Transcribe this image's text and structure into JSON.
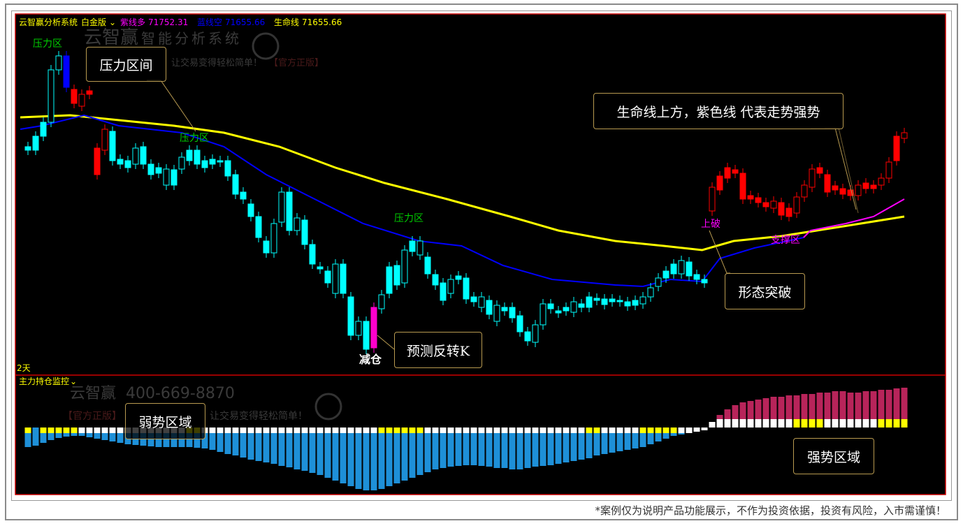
{
  "header": {
    "title": "云智赢分析系统",
    "edition": "白金版",
    "purple_label": "紫线多",
    "purple_value": "71752.31",
    "blue_label": "蓝线空",
    "blue_value": "71655.66",
    "life_label": "生命线",
    "life_value": "71655.66"
  },
  "watermark": {
    "brand": "云智赢",
    "subtitle": "智能分析系统",
    "slogan": "让交易变得轻松简单！",
    "official": "【官方正版】",
    "phone": "400-669-8870"
  },
  "period_label": "2天",
  "sub_panel": {
    "title": "主力持仓监控"
  },
  "annotations": {
    "pressure1": "压力区",
    "pressure2": "压力区",
    "pressure3": "压力区",
    "breakout": "上破",
    "support": "支撑区",
    "reduce": "减仓"
  },
  "callouts": {
    "pressure_range": "压力区间",
    "strong_trend": "生命线上方，紫色线  代表走势强势",
    "pattern_break": "形态突破",
    "reversal_k": "预测反转K",
    "weak_zone": "弱势区域",
    "strong_zone": "强势区域"
  },
  "footer": "*案例仅为说明产品功能展示，不作为投资依据，投资有风险，入市需谨慎！",
  "colors": {
    "background": "#000000",
    "border": "#cc0000",
    "up_red": "#ff0000",
    "down_cyan": "#00ffff",
    "blue_candle": "#0000ff",
    "magenta_candle": "#ff00cc",
    "life_line": "#ffff00",
    "blue_line": "#0000ff",
    "purple_line": "#ff00ff",
    "bar_blue": "#1e90d8",
    "bar_red": "#b8245a",
    "cap_yellow": "#ffff00",
    "cap_white": "#ffffff",
    "label_green": "#00cc00"
  },
  "chart_data": {
    "type": "candlestick",
    "note_units": "relative price level (unlabeled axis)",
    "candles": [
      [
        310,
        305,
        "c"
      ],
      [
        325,
        305,
        "c"
      ],
      [
        345,
        325,
        "c"
      ],
      [
        420,
        345,
        "ch"
      ],
      [
        440,
        420,
        "ch"
      ],
      [
        440,
        395,
        "b"
      ],
      [
        392,
        372,
        "r"
      ],
      [
        385,
        368,
        "rh"
      ],
      [
        390,
        385,
        "r"
      ],
      [
        308,
        270,
        "r"
      ],
      [
        335,
        305,
        "rh"
      ],
      [
        332,
        290,
        "c"
      ],
      [
        292,
        285,
        "c"
      ],
      [
        290,
        280,
        "c"
      ],
      [
        308,
        285,
        "ch"
      ],
      [
        310,
        285,
        "c"
      ],
      [
        285,
        270,
        "c"
      ],
      [
        280,
        272,
        "c"
      ],
      [
        278,
        255,
        "ch"
      ],
      [
        277,
        255,
        "c"
      ],
      [
        295,
        278,
        "ch"
      ],
      [
        305,
        290,
        "c"
      ],
      [
        305,
        285,
        "c"
      ],
      [
        290,
        280,
        "c"
      ],
      [
        292,
        285,
        "c"
      ],
      [
        290,
        288,
        "c"
      ],
      [
        290,
        268,
        "c"
      ],
      [
        270,
        242,
        "c"
      ],
      [
        245,
        235,
        "c"
      ],
      [
        228,
        210,
        "c"
      ],
      [
        210,
        180,
        "c"
      ],
      [
        175,
        158,
        "c"
      ],
      [
        200,
        158,
        "ch"
      ],
      [
        245,
        202,
        "ch"
      ],
      [
        245,
        190,
        "c"
      ],
      [
        208,
        190,
        "ch"
      ],
      [
        205,
        170,
        "c"
      ],
      [
        170,
        142,
        "c"
      ],
      [
        138,
        135,
        "c"
      ],
      [
        132,
        115,
        "c"
      ],
      [
        142,
        100,
        "ch"
      ],
      [
        142,
        100,
        "c"
      ],
      [
        95,
        40,
        "c"
      ],
      [
        60,
        40,
        "ch"
      ],
      [
        60,
        20,
        "c"
      ],
      [
        80,
        22,
        "m"
      ],
      [
        98,
        78,
        "ch"
      ],
      [
        138,
        100,
        "c"
      ],
      [
        140,
        112,
        "c"
      ],
      [
        162,
        115,
        "ch"
      ],
      [
        175,
        160,
        "c"
      ],
      [
        175,
        155,
        "ch"
      ],
      [
        152,
        128,
        "c"
      ],
      [
        127,
        112,
        "c"
      ],
      [
        115,
        90,
        "c"
      ],
      [
        120,
        100,
        "ch"
      ],
      [
        125,
        120,
        "c"
      ],
      [
        122,
        92,
        "c"
      ],
      [
        95,
        88,
        "c"
      ],
      [
        95,
        80,
        "ch"
      ],
      [
        90,
        70,
        "c"
      ],
      [
        83,
        60,
        "ch"
      ],
      [
        80,
        75,
        "c"
      ],
      [
        80,
        65,
        "c"
      ],
      [
        68,
        45,
        "c"
      ],
      [
        45,
        32,
        "c"
      ],
      [
        55,
        30,
        "ch"
      ],
      [
        85,
        55,
        "ch"
      ],
      [
        85,
        78,
        "c"
      ],
      [
        75,
        72,
        "c"
      ],
      [
        80,
        75,
        "c"
      ],
      [
        88,
        73,
        "ch"
      ],
      [
        85,
        80,
        "c"
      ],
      [
        95,
        80,
        "c"
      ],
      [
        93,
        90,
        "c"
      ],
      [
        92,
        84,
        "c"
      ],
      [
        92,
        88,
        "c"
      ],
      [
        90,
        88,
        "c"
      ],
      [
        88,
        82,
        "c"
      ],
      [
        90,
        83,
        "c"
      ],
      [
        95,
        85,
        "ch"
      ],
      [
        108,
        95,
        "ch"
      ],
      [
        122,
        110,
        "ch"
      ],
      [
        132,
        122,
        "c"
      ],
      [
        142,
        128,
        "c"
      ],
      [
        147,
        128,
        "ch"
      ],
      [
        145,
        125,
        "c"
      ],
      [
        127,
        120,
        "c"
      ],
      [
        120,
        115,
        "c"
      ],
      [
        252,
        218,
        "rh"
      ],
      [
        268,
        248,
        "r"
      ],
      [
        280,
        265,
        "r"
      ],
      [
        277,
        272,
        "r"
      ],
      [
        272,
        235,
        "r"
      ],
      [
        240,
        235,
        "r"
      ],
      [
        237,
        230,
        "r"
      ],
      [
        230,
        224,
        "r"
      ],
      [
        232,
        222,
        "rh"
      ],
      [
        230,
        212,
        "r"
      ],
      [
        222,
        210,
        "r"
      ],
      [
        238,
        215,
        "rh"
      ],
      [
        255,
        238,
        "rh"
      ],
      [
        278,
        252,
        "rh"
      ],
      [
        280,
        272,
        "r"
      ],
      [
        270,
        245,
        "r"
      ],
      [
        254,
        248,
        "r"
      ],
      [
        250,
        242,
        "r"
      ],
      [
        248,
        240,
        "r"
      ],
      [
        255,
        240,
        "rh"
      ],
      [
        258,
        250,
        "r"
      ],
      [
        255,
        250,
        "r"
      ],
      [
        265,
        255,
        "rh"
      ],
      [
        288,
        265,
        "rh"
      ],
      [
        325,
        290,
        "r"
      ],
      [
        330,
        322,
        "rh"
      ]
    ],
    "lines": {
      "life_line": [
        [
          -1,
          352
        ],
        [
          5.5,
          355
        ],
        [
          19,
          340
        ],
        [
          25.5,
          330
        ],
        [
          32.7,
          310
        ],
        [
          40,
          280
        ],
        [
          46.4,
          258
        ],
        [
          54.5,
          235
        ],
        [
          62.7,
          210
        ],
        [
          69,
          190
        ],
        [
          76.4,
          175
        ],
        [
          82.7,
          168
        ],
        [
          87.7,
          162
        ],
        [
          91.8,
          175
        ],
        [
          98,
          182
        ],
        [
          105.5,
          195
        ],
        [
          114,
          210
        ]
      ],
      "blue_line": [
        [
          -1,
          335
        ],
        [
          1.8,
          340
        ],
        [
          7.3,
          355
        ],
        [
          11.8,
          340
        ],
        [
          20,
          330
        ],
        [
          25.5,
          310
        ],
        [
          31,
          270
        ],
        [
          36.4,
          240
        ],
        [
          43.6,
          200
        ],
        [
          50.9,
          175
        ],
        [
          56.4,
          168
        ],
        [
          61.8,
          140
        ],
        [
          68.2,
          120
        ],
        [
          76.4,
          112
        ],
        [
          80,
          110
        ],
        [
          83.6,
          120
        ],
        [
          87.7,
          117
        ],
        [
          90,
          150
        ],
        [
          94.5,
          165
        ],
        [
          100.9,
          180
        ]
      ],
      "purple_line": [
        [
          100.9,
          180
        ],
        [
          101.8,
          190
        ],
        [
          106.4,
          200
        ],
        [
          110,
          210
        ],
        [
          114,
          235
        ]
      ]
    },
    "position_bars": [
      -28,
      -26,
      -22,
      -18,
      -15,
      -13,
      -12,
      -12,
      -14,
      -16,
      -18,
      -20,
      -22,
      -24,
      -25,
      -26,
      -27,
      -28,
      -28,
      -28,
      -28,
      -28,
      -29,
      -30,
      -32,
      -35,
      -38,
      -40,
      -43,
      -46,
      -48,
      -50,
      -52,
      -55,
      -57,
      -60,
      -62,
      -65,
      -68,
      -72,
      -76,
      -80,
      -84,
      -88,
      -90,
      -90,
      -88,
      -84,
      -80,
      -76,
      -72,
      -68,
      -64,
      -60,
      -58,
      -56,
      -55,
      -54,
      -54,
      -55,
      -56,
      -58,
      -58,
      -60,
      -60,
      -58,
      -56,
      -55,
      -54,
      -52,
      -50,
      -48,
      -46,
      -44,
      -40,
      -38,
      -36,
      -34,
      -32,
      -30,
      -28,
      -24,
      -20,
      -16,
      -12,
      -10,
      -8,
      -6,
      -4,
      8,
      18,
      26,
      32,
      36,
      38,
      40,
      42,
      44,
      44,
      46,
      46,
      48,
      48,
      50,
      50,
      52,
      52,
      50,
      50,
      52,
      52,
      54,
      54,
      56,
      57
    ],
    "bar_caps": "ybyyyyywwwwwwwwwwwwwwyywwwwwwwwwwwwwwwwwwwwwwwyyyyyywwwwwwwwwwwwwwwwwwwwwyywwwwwyyyyywwwwwwwwwwwwwwwyyyywwwwwwwyyyy"
  }
}
